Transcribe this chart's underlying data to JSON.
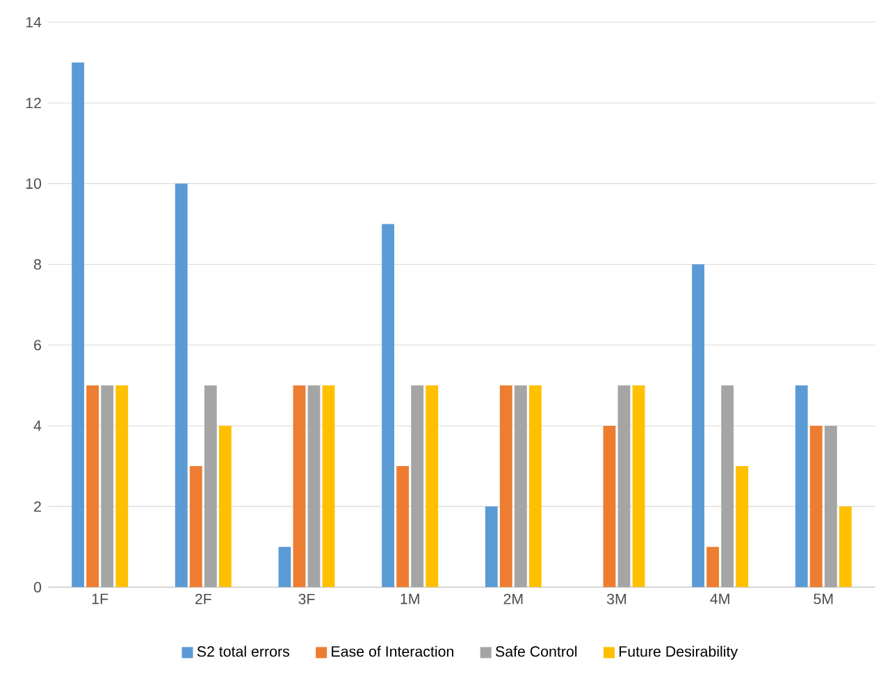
{
  "chart_data": {
    "type": "bar",
    "categories": [
      "1F",
      "2F",
      "3F",
      "1M",
      "2M",
      "3M",
      "4M",
      "5M"
    ],
    "series": [
      {
        "name": "S2 total errors",
        "color": "#5b9bd5",
        "values": [
          13,
          10,
          1,
          9,
          2,
          0,
          8,
          5
        ]
      },
      {
        "name": "Ease of Interaction",
        "color": "#ed7d31",
        "values": [
          5,
          3,
          5,
          3,
          5,
          4,
          1,
          4
        ]
      },
      {
        "name": "Safe Control",
        "color": "#a5a5a5",
        "values": [
          5,
          5,
          5,
          5,
          5,
          5,
          5,
          4
        ]
      },
      {
        "name": "Future Desirability",
        "color": "#ffc000",
        "values": [
          5,
          4,
          5,
          5,
          5,
          5,
          3,
          2
        ]
      }
    ],
    "ylim": [
      0,
      14
    ],
    "yticks": [
      0,
      2,
      4,
      6,
      8,
      10,
      12,
      14
    ],
    "grid": "y",
    "legend": "bottom"
  }
}
